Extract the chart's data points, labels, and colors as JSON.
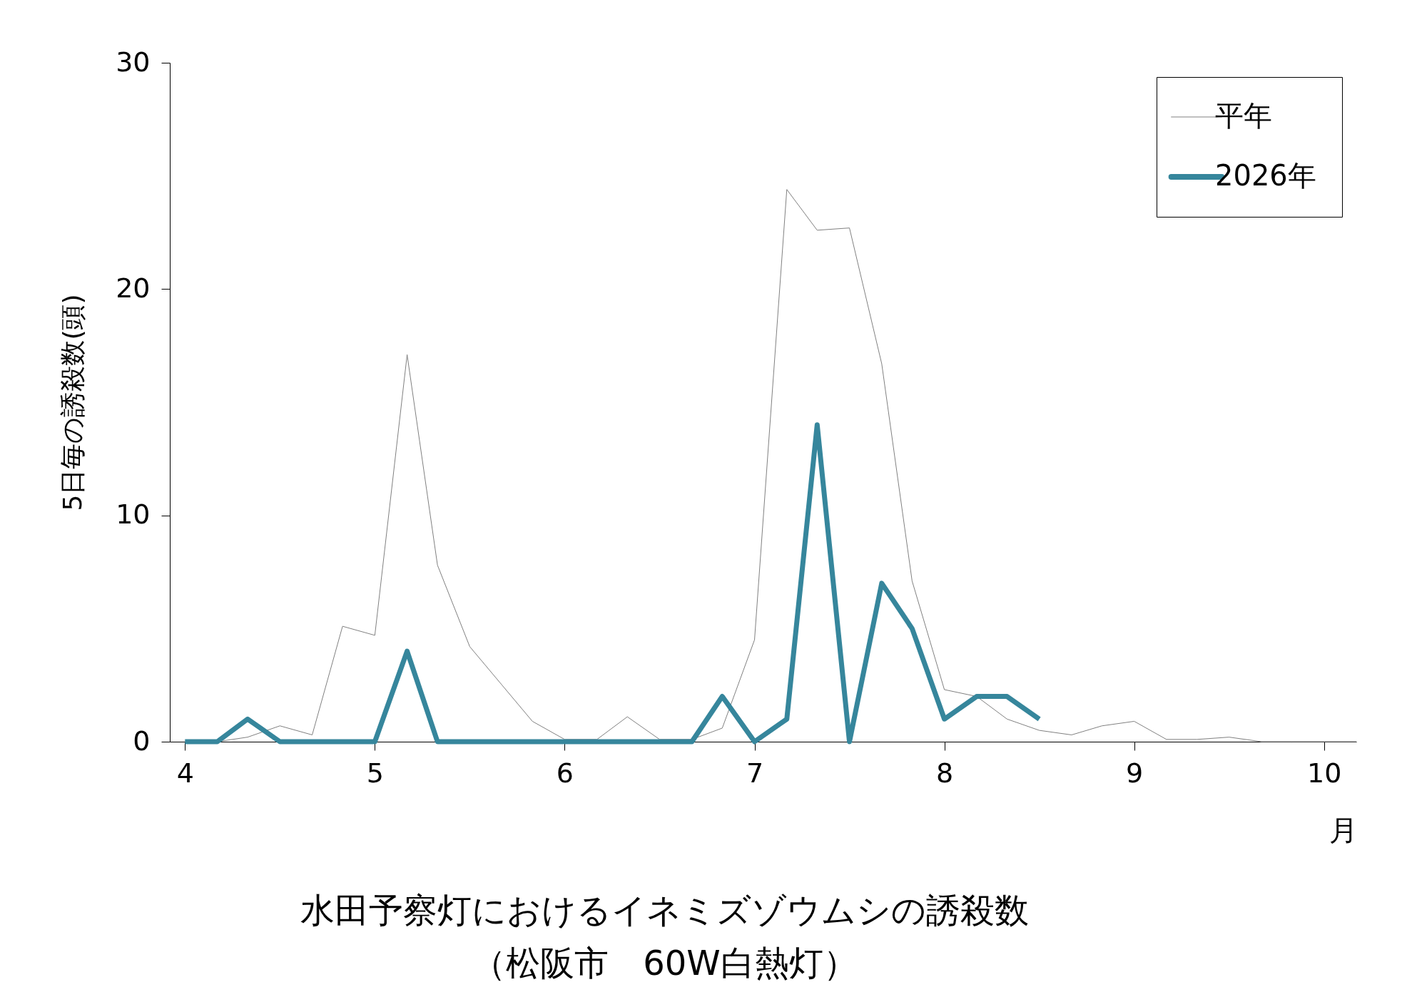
{
  "chart_data": {
    "type": "line",
    "title": "水田予察灯におけるイネミズゾウムシの誘殺数",
    "subtitle": "（松阪市　60W白熱灯）",
    "xlabel": "月",
    "ylabel": "5日毎の誘殺数(頭)",
    "x": [
      4,
      4.17,
      4.33,
      4.5,
      4.67,
      4.83,
      5,
      5.17,
      5.33,
      5.5,
      5.67,
      5.83,
      6,
      6.17,
      6.33,
      6.5,
      6.67,
      6.83,
      7,
      7.17,
      7.33,
      7.5,
      7.67,
      7.83,
      8,
      8.17,
      8.33,
      8.5,
      8.67,
      8.83,
      9,
      9.17,
      9.33,
      9.5,
      9.67,
      9.83,
      10,
      10.17
    ],
    "series": [
      {
        "name": "平年",
        "color": "#808080",
        "values": [
          0,
          0,
          0.2,
          0.7,
          0.3,
          5.1,
          4.7,
          17.1,
          7.8,
          4.2,
          2.5,
          0.9,
          0.1,
          0.1,
          1.1,
          0.1,
          0.1,
          0.6,
          4.5,
          24.4,
          22.6,
          22.7,
          16.7,
          7.1,
          2.3,
          2.0,
          1.0,
          0.5,
          0.3,
          0.7,
          0.9,
          0.1,
          0.1,
          0.2,
          0,
          0,
          0,
          0
        ]
      },
      {
        "name": "2026年",
        "color": "#36869c",
        "x": [
          4,
          4.17,
          4.33,
          4.5,
          4.67,
          4.83,
          5,
          5.17,
          5.33,
          5.5,
          5.67,
          5.83,
          6,
          6.17,
          6.33,
          6.5,
          6.67,
          6.83,
          7,
          7.17,
          7.33,
          7.5,
          7.67,
          7.83,
          8,
          8.17,
          8.33,
          8.5
        ],
        "values": [
          0,
          0,
          1,
          0,
          0,
          0,
          0,
          4,
          0,
          0,
          0,
          0,
          0,
          0,
          0,
          0,
          0,
          2,
          0,
          1,
          14,
          0,
          7,
          5,
          1,
          2,
          2,
          1
        ]
      }
    ],
    "xlim": [
      3.92,
      10.17
    ],
    "xticks": [
      4,
      5,
      6,
      7,
      8,
      9,
      10
    ],
    "ylim": [
      0,
      30
    ],
    "yticks": [
      0,
      10,
      20,
      30
    ],
    "grid": false,
    "legend": "top right",
    "marker": "none",
    "line_style": "solid"
  }
}
